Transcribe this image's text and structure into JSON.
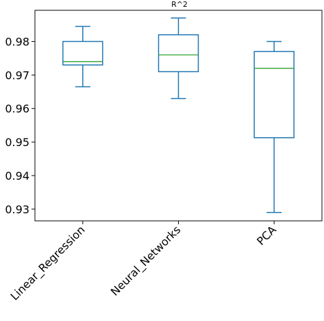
{
  "chart_data": {
    "type": "box",
    "title": "R^2",
    "xlabel": "",
    "ylabel": "",
    "ylim": [
      0.9265,
      0.9893
    ],
    "yticks": [
      0.93,
      0.94,
      0.95,
      0.96,
      0.97,
      0.98
    ],
    "ytick_labels": [
      "0.93",
      "0.94",
      "0.95",
      "0.96",
      "0.97",
      "0.98"
    ],
    "categories": [
      "Linear_Regression",
      "Neural_Networks",
      "PCA"
    ],
    "boxes": [
      {
        "name": "Linear_Regression",
        "whislo": 0.9665,
        "q1": 0.973,
        "med": 0.974,
        "q3": 0.98,
        "whishi": 0.9845
      },
      {
        "name": "Neural_Networks",
        "whislo": 0.963,
        "q1": 0.971,
        "med": 0.976,
        "q3": 0.982,
        "whishi": 0.987
      },
      {
        "name": "PCA",
        "whislo": 0.929,
        "q1": 0.9513,
        "med": 0.972,
        "q3": 0.977,
        "whishi": 0.98
      }
    ],
    "colors": {
      "box": "#1f77b4",
      "median": "#2ca02c",
      "axes": "#000000"
    },
    "grid": false
  }
}
